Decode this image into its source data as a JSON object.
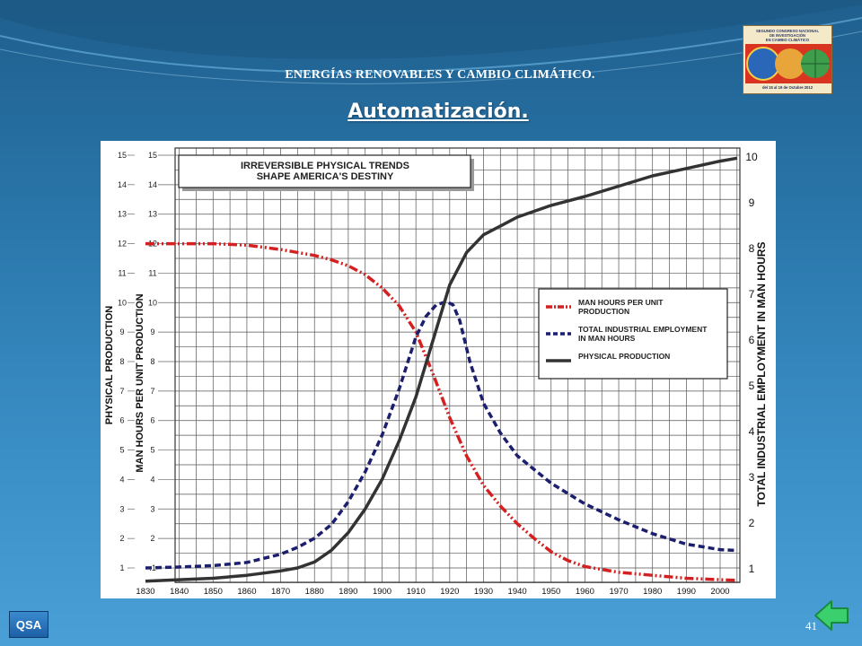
{
  "header": {
    "subtitle": "ENERGÍAS RENOVABLES Y CAMBIO CLIMÁTICO.",
    "title": "Automatización."
  },
  "logo": {
    "line1": "SEGUNDO CONGRESO NACIONAL",
    "line2": "DE INVESTIGACIÓN",
    "line3": "EN CAMBIO CLIMÁTICO",
    "dates": "del 15 al 19 de Octubre 2012"
  },
  "footer": {
    "badge": "QSA",
    "page_number": "41",
    "back_icon": "back-arrow-icon"
  },
  "chart_data": {
    "type": "line",
    "title": "IRREVERSIBLE PHYSICAL TRENDS SHAPE AMERICA'S DESTINY",
    "title_lines": [
      "IRREVERSIBLE PHYSICAL TRENDS",
      "SHAPE AMERICA'S DESTINY"
    ],
    "x_ticks": [
      "1830",
      "1840",
      "1850",
      "1860",
      "1870",
      "1880",
      "1890",
      "1900",
      "1910",
      "1920",
      "1930",
      "1940",
      "1950",
      "1960",
      "1970",
      "1980",
      "1990",
      "2000"
    ],
    "xlim": [
      1830,
      2005
    ],
    "left_axis_outer": {
      "label": "PHYSICAL PRODUCTION",
      "ticks": [
        "1",
        "2",
        "3",
        "4",
        "5",
        "6",
        "7",
        "8",
        "9",
        "10",
        "11",
        "12",
        "13",
        "14",
        "15"
      ]
    },
    "left_axis_inner": {
      "label": "MAN HOURS PER UNIT PRODUCTION",
      "ticks": [
        ".1",
        "2",
        "3",
        "4",
        "5",
        "6",
        "7",
        "8",
        "9",
        "10",
        "11",
        "12",
        "13",
        "14",
        "15"
      ]
    },
    "right_axis": {
      "label": "TOTAL INDUSTRIAL EMPLOYMENT IN MAN HOURS",
      "ticks": [
        "1",
        "2",
        "3",
        "4",
        "5",
        "6",
        "7",
        "8",
        "9",
        "10"
      ],
      "ylim": [
        0.5,
        10.1
      ]
    },
    "ylim": [
      0.5,
      15.5
    ],
    "grid": true,
    "legend_position": "right",
    "series": [
      {
        "name": "MAN HOURS PER UNIT PRODUCTION",
        "legend_lines": [
          "MAN HOURS PER UNIT",
          "PRODUCTION"
        ],
        "color": "#d42020",
        "style": "dash-dot",
        "axis": "left",
        "x": [
          1830,
          1840,
          1850,
          1860,
          1870,
          1880,
          1885,
          1890,
          1895,
          1900,
          1905,
          1910,
          1915,
          1920,
          1925,
          1930,
          1935,
          1940,
          1945,
          1950,
          1955,
          1960,
          1970,
          1980,
          1990,
          2000,
          2005
        ],
        "y": [
          12,
          12,
          12,
          11.95,
          11.8,
          11.6,
          11.45,
          11.25,
          10.95,
          10.5,
          9.9,
          9.0,
          7.6,
          6.1,
          4.8,
          3.8,
          3.1,
          2.5,
          2.0,
          1.55,
          1.25,
          1.05,
          0.85,
          0.75,
          0.65,
          0.6,
          0.58
        ]
      },
      {
        "name": "TOTAL INDUSTRIAL EMPLOYMENT IN MAN HOURS",
        "legend_lines": [
          "TOTAL INDUSTRIAL EMPLOYMENT",
          "IN MAN HOURS"
        ],
        "color": "#1c1f6e",
        "style": "dashed",
        "axis": "right",
        "x": [
          1830,
          1840,
          1850,
          1860,
          1870,
          1875,
          1880,
          1885,
          1890,
          1895,
          1900,
          1905,
          1910,
          1913,
          1916,
          1919,
          1921,
          1923,
          1926,
          1930,
          1935,
          1940,
          1950,
          1960,
          1970,
          1980,
          1990,
          2000,
          2005
        ],
        "y": [
          1.0,
          1.02,
          1.05,
          1.12,
          1.3,
          1.45,
          1.65,
          1.95,
          2.45,
          3.1,
          3.9,
          4.9,
          6.05,
          6.5,
          6.75,
          6.82,
          6.75,
          6.4,
          5.5,
          4.6,
          3.95,
          3.45,
          2.85,
          2.4,
          2.05,
          1.75,
          1.52,
          1.4,
          1.38
        ]
      },
      {
        "name": "PHYSICAL PRODUCTION",
        "legend_lines": [
          "PHYSICAL PRODUCTION"
        ],
        "color": "#333333",
        "style": "solid",
        "axis": "left",
        "x": [
          1830,
          1840,
          1850,
          1860,
          1870,
          1875,
          1880,
          1885,
          1890,
          1895,
          1900,
          1905,
          1910,
          1915,
          1920,
          1925,
          1930,
          1935,
          1940,
          1950,
          1960,
          1970,
          1980,
          1990,
          2000,
          2005
        ],
        "y": [
          0.55,
          0.6,
          0.65,
          0.75,
          0.9,
          1.0,
          1.2,
          1.6,
          2.2,
          3.0,
          4.0,
          5.3,
          6.8,
          8.7,
          10.6,
          11.7,
          12.3,
          12.6,
          12.9,
          13.3,
          13.6,
          13.95,
          14.3,
          14.55,
          14.8,
          14.9
        ]
      }
    ]
  }
}
